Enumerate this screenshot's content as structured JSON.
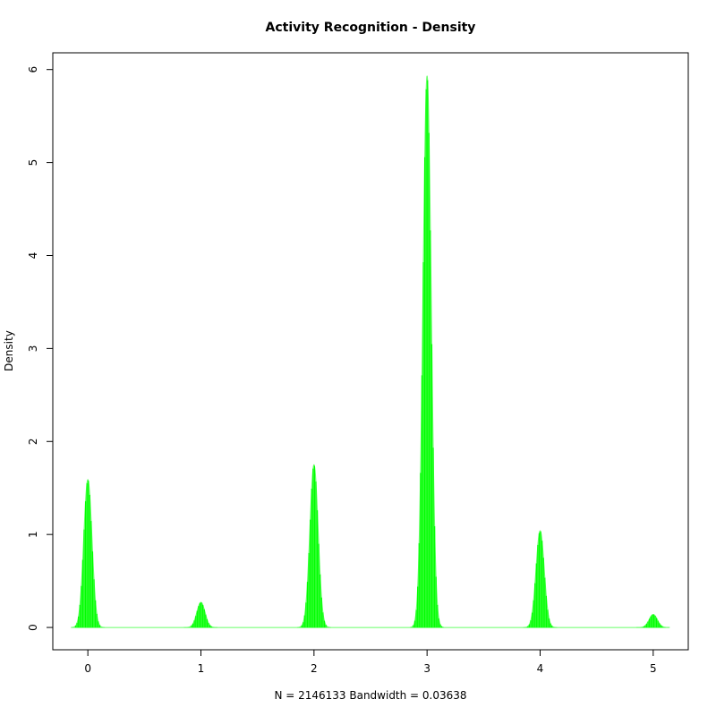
{
  "chart_data": {
    "type": "area",
    "title": "Activity Recognition - Density",
    "xlabel": "N = 2146133   Bandwidth = 0.03638",
    "ylabel": "Density",
    "xlim": [
      -0.31,
      5.31
    ],
    "ylim": [
      -0.24,
      6.18
    ],
    "x_ticks": [
      0,
      1,
      2,
      3,
      4,
      5
    ],
    "y_ticks": [
      0,
      1,
      2,
      3,
      4,
      5,
      6
    ],
    "grid": false,
    "series": [
      {
        "fill_color": "#00ff00",
        "stroke_color": "#66ff66",
        "style": "vertical-hatch",
        "peaks": [
          {
            "x": 0,
            "height": 1.59
          },
          {
            "x": 1,
            "height": 0.27
          },
          {
            "x": 2,
            "height": 1.75
          },
          {
            "x": 3,
            "height": 5.93
          },
          {
            "x": 4,
            "height": 1.04
          },
          {
            "x": 5,
            "height": 0.14
          }
        ],
        "x_range": [
          -0.11,
          5.11
        ],
        "bandwidth": 0.03638
      }
    ]
  }
}
